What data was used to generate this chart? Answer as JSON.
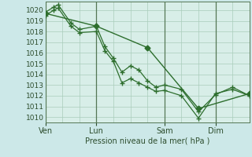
{
  "background_color": "#cce8e8",
  "plot_bg_color": "#d8eee8",
  "grid_color": "#aaccbb",
  "line_color": "#2d6e2d",
  "marker_color": "#2d6e2d",
  "vline_color": "#557755",
  "ylabel": "Pression niveau de la mer( hPa )",
  "ylim": [
    1009.5,
    1020.8
  ],
  "yticks": [
    1010,
    1011,
    1012,
    1013,
    1014,
    1015,
    1016,
    1017,
    1018,
    1019,
    1020
  ],
  "xtick_labels": [
    "Ven",
    "Lun",
    "Sam",
    "Dim"
  ],
  "xtick_positions": [
    0,
    72,
    168,
    240
  ],
  "vline_positions": [
    0,
    72,
    168,
    240
  ],
  "total_hours": 288,
  "series1": {
    "x": [
      0,
      12,
      18,
      36,
      48,
      72,
      84,
      96,
      108,
      120,
      132,
      144,
      156,
      168,
      192,
      216,
      240,
      264,
      288
    ],
    "y": [
      1019.8,
      1020.3,
      1020.5,
      1018.8,
      1018.2,
      1018.5,
      1016.6,
      1015.5,
      1014.2,
      1014.8,
      1014.4,
      1013.4,
      1012.8,
      1013.0,
      1012.6,
      1010.5,
      1012.1,
      1012.8,
      1012.0
    ]
  },
  "series2": {
    "x": [
      0,
      12,
      18,
      36,
      48,
      72,
      84,
      96,
      108,
      120,
      132,
      144,
      156,
      168,
      192,
      216,
      240,
      264,
      288
    ],
    "y": [
      1019.5,
      1020.0,
      1020.2,
      1018.5,
      1017.9,
      1018.0,
      1016.2,
      1015.2,
      1013.2,
      1013.6,
      1013.2,
      1012.8,
      1012.4,
      1012.5,
      1012.0,
      1009.9,
      1012.2,
      1012.6,
      1012.0
    ]
  },
  "series3": {
    "x": [
      0,
      72,
      144,
      216,
      288
    ],
    "y": [
      1019.7,
      1018.5,
      1016.5,
      1010.8,
      1012.2
    ]
  }
}
